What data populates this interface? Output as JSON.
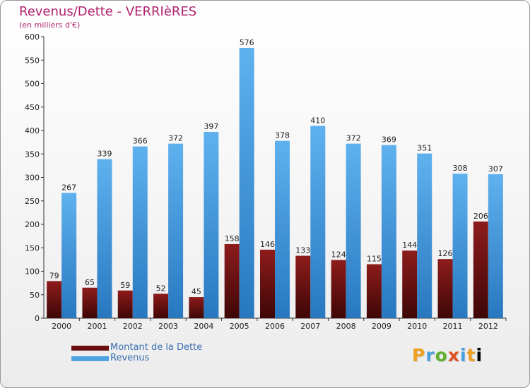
{
  "chart_data": {
    "type": "bar",
    "title": "Revenus/Dette - VERRIèRES",
    "subtitle": "(en milliers d'€)",
    "categories": [
      "2000",
      "2001",
      "2002",
      "2003",
      "2004",
      "2005",
      "2006",
      "2007",
      "2008",
      "2009",
      "2010",
      "2011",
      "2012"
    ],
    "series": [
      {
        "name": "Montant de la Dette",
        "color": "#7a1212",
        "values": [
          79,
          65,
          59,
          52,
          45,
          158,
          146,
          133,
          124,
          115,
          144,
          126,
          206
        ]
      },
      {
        "name": "Revenus",
        "color": "#4fa3e3",
        "values": [
          267,
          339,
          366,
          372,
          397,
          576,
          378,
          410,
          372,
          369,
          351,
          308,
          307
        ]
      }
    ],
    "ylim": [
      0,
      600
    ],
    "yticks": [
      "0",
      "50",
      "100",
      "150",
      "200",
      "250",
      "300",
      "350",
      "400",
      "450",
      "500",
      "550",
      "600"
    ],
    "grid": false,
    "legend_position": "bottom-left"
  },
  "logo": {
    "text": [
      "P",
      "r",
      "o",
      "x",
      "i",
      "t",
      "i"
    ]
  }
}
